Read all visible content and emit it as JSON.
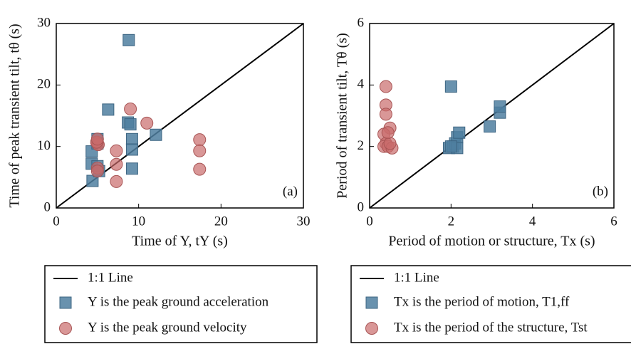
{
  "chart_data": [
    {
      "type": "scatter",
      "annotation": "(a)",
      "xlabel": "Time of Y, tY (s)",
      "ylabel": "Time of peak transient tilt, tθ (s)",
      "xlim": [
        0,
        30
      ],
      "ylim": [
        0,
        30
      ],
      "xticks": [
        0,
        10,
        20,
        30
      ],
      "yticks": [
        0,
        10,
        20,
        30
      ],
      "reference_line": "1:1 Line",
      "series": [
        {
          "name": "Y is the peak ground acceleration",
          "color": "#4f7fa0",
          "marker": "square",
          "x": [
            4.4,
            4.3,
            4.3,
            5.0,
            5.0,
            5.0,
            5.2,
            6.3,
            8.8,
            8.7,
            9.2,
            9.2,
            9.2,
            12.1,
            9.0
          ],
          "values": [
            4.4,
            7.2,
            9.2,
            11.2,
            10.5,
            6.8,
            6.0,
            16.0,
            27.3,
            13.9,
            11.2,
            9.5,
            6.4,
            11.9,
            13.6
          ]
        },
        {
          "name": "Y is the peak ground velocity",
          "color": "#c96b6b",
          "marker": "circle",
          "x": [
            5.0,
            5.1,
            4.9,
            5.0,
            5.0,
            7.3,
            7.3,
            7.3,
            9.0,
            11.0,
            17.4,
            17.4,
            17.4,
            5.0
          ],
          "values": [
            10.5,
            10.3,
            10.7,
            11.2,
            6.5,
            9.3,
            7.1,
            4.3,
            16.1,
            13.8,
            11.1,
            9.3,
            6.3,
            6.0
          ]
        }
      ]
    },
    {
      "type": "scatter",
      "annotation": "(b)",
      "xlabel": "Period of motion or structure, Tx (s)",
      "ylabel": "Period of transient tilt, Tθ (s)",
      "xlim": [
        0,
        6
      ],
      "ylim": [
        0,
        6
      ],
      "xticks": [
        0,
        2,
        4,
        6
      ],
      "yticks": [
        0,
        2,
        4,
        6
      ],
      "reference_line": "1:1 Line",
      "series": [
        {
          "name": "Tx is the period of motion, T1,ff",
          "color": "#4f7fa0",
          "marker": "square",
          "x": [
            2.0,
            1.95,
            2.05,
            2.1,
            2.15,
            2.2,
            2.15,
            2.0,
            2.95,
            3.2,
            3.2
          ],
          "values": [
            3.95,
            1.95,
            2.0,
            2.1,
            2.3,
            2.45,
            1.95,
            2.0,
            2.65,
            3.1,
            3.3
          ]
        },
        {
          "name": "Tx is the period of the structure, Tst",
          "color": "#c96b6b",
          "marker": "circle",
          "x": [
            0.4,
            0.4,
            0.4,
            0.5,
            0.35,
            0.4,
            0.35,
            0.45,
            0.55,
            0.5,
            0.45
          ],
          "values": [
            3.95,
            3.35,
            3.05,
            2.6,
            2.4,
            2.1,
            2.0,
            2.0,
            1.95,
            2.1,
            2.45
          ]
        }
      ]
    }
  ]
}
